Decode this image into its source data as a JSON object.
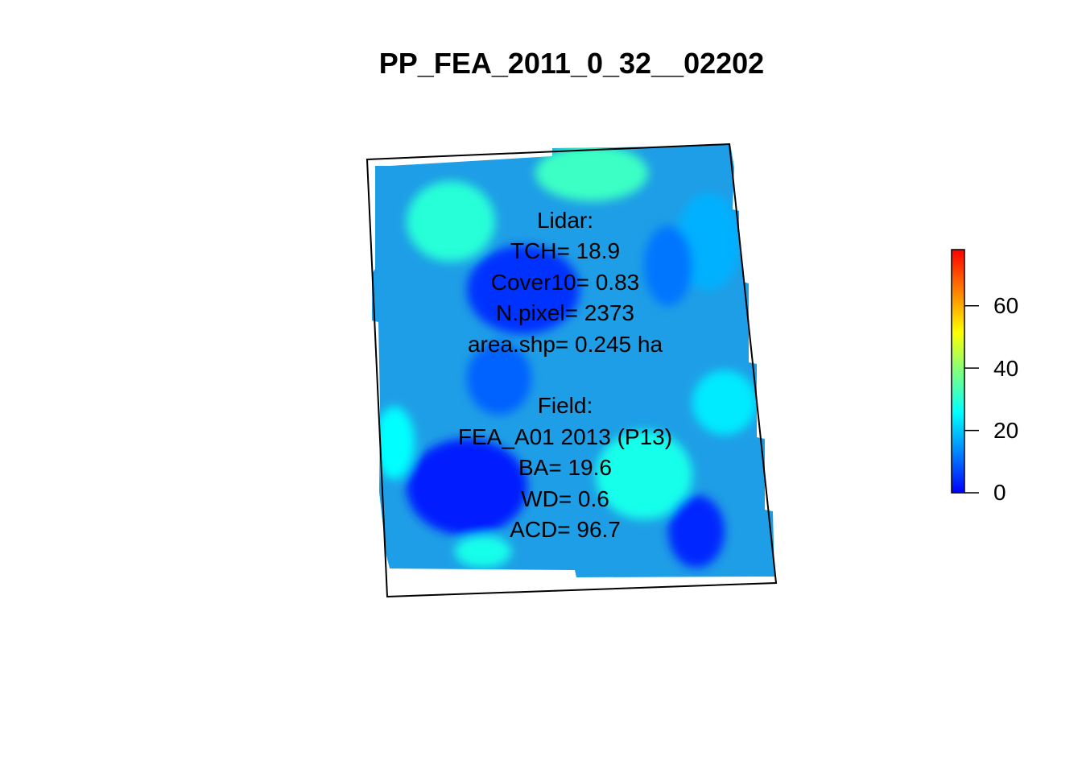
{
  "title": "PP_FEA_2011_0_32__02202",
  "lidar": {
    "heading": "Lidar:",
    "tch": "TCH= 18.9",
    "cover10": "Cover10= 0.83",
    "npixel": "N.pixel= 2373",
    "area": "area.shp= 0.245 ha"
  },
  "field": {
    "heading": "Field:",
    "plot": "FEA_A01 2013 (P13)",
    "ba": "BA= 19.6",
    "wd": "WD= 0.6",
    "acd": "ACD= 96.7"
  },
  "legend": {
    "range": [
      0,
      78
    ],
    "ticks": [
      "0",
      "20",
      "40",
      "60"
    ],
    "tick_values": [
      0,
      20,
      40,
      60
    ],
    "colors": [
      "#0000ff",
      "#0080ff",
      "#00ffff",
      "#80ff80",
      "#ffff00",
      "#ff8000",
      "#ff0000"
    ]
  },
  "chart_data": {
    "type": "heatmap",
    "title": "PP_FEA_2011_0_32__02202",
    "value_range": [
      0,
      78
    ],
    "colorbar_ticks": [
      0,
      20,
      40,
      60
    ],
    "zones": [
      {
        "value": 30
      },
      {
        "value": 32
      },
      {
        "value": 5
      },
      {
        "value": 3
      },
      {
        "value": 28
      },
      {
        "value": 26
      },
      {
        "value": 4
      },
      {
        "value": 18
      },
      {
        "value": 12
      },
      {
        "value": 24
      },
      {
        "value": 28
      },
      {
        "value": 10
      }
    ]
  }
}
